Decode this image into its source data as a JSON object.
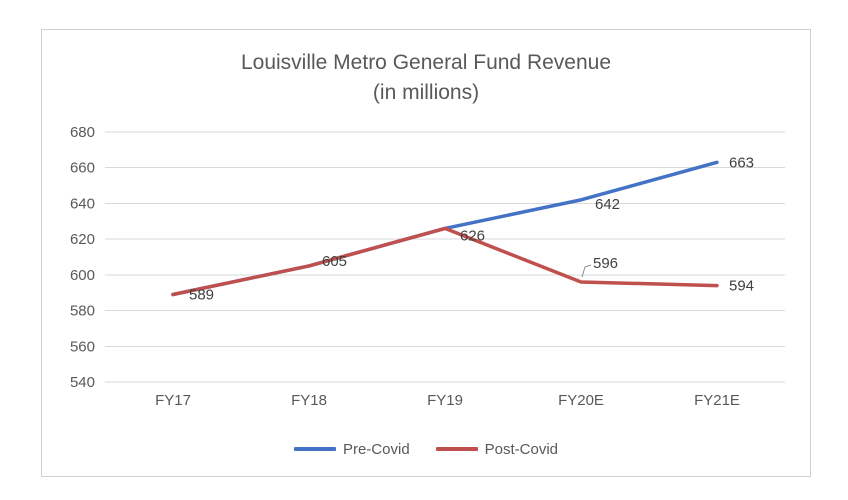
{
  "chart_data": {
    "type": "line",
    "title": "Louisville Metro General Fund Revenue",
    "subtitle": "(in millions)",
    "categories": [
      "FY17",
      "FY18",
      "FY19",
      "FY20E",
      "FY21E"
    ],
    "series": [
      {
        "name": "Pre-Covid",
        "color": "#4472c4",
        "values": [
          589,
          605,
          626,
          642,
          663
        ],
        "data_labels": [
          null,
          null,
          null,
          "642",
          "663"
        ]
      },
      {
        "name": "Post-Covid",
        "color": "#c0504d",
        "values": [
          589,
          605,
          626,
          596,
          594
        ],
        "data_labels": [
          "589",
          "605",
          "626",
          "596",
          "594"
        ]
      }
    ],
    "ylim": [
      540,
      680
    ],
    "yticks": [
      540,
      560,
      580,
      600,
      620,
      640,
      660,
      680
    ],
    "xlabel": "",
    "ylabel": "",
    "grid": "horizontal",
    "gridline_color": "#d9d9d9",
    "axis_text_color": "#595959",
    "data_label_color": "#404040",
    "legend_position": "bottom",
    "callout": {
      "series": "Post-Covid",
      "category": "FY20E",
      "label": "596"
    }
  }
}
